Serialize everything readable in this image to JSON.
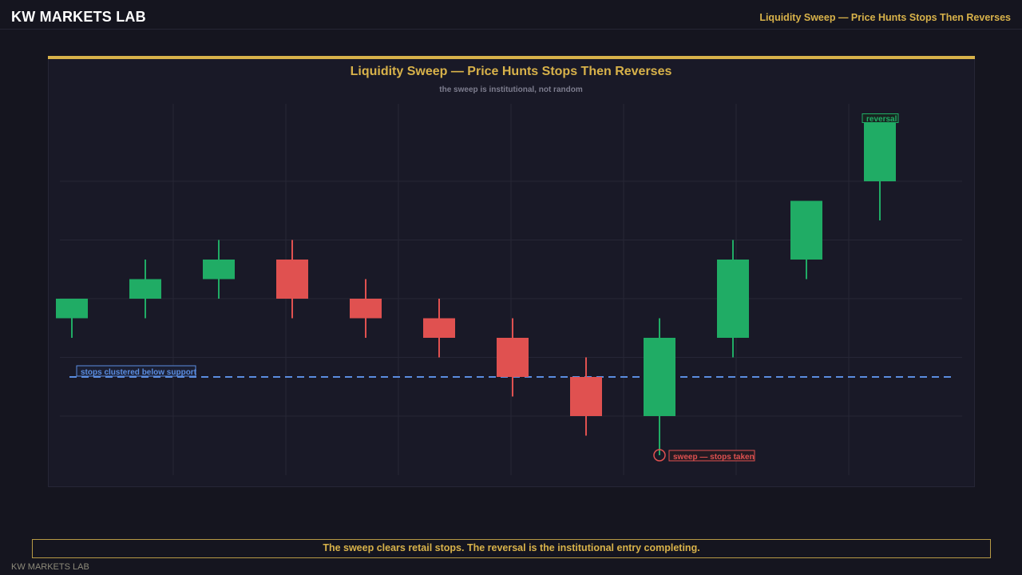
{
  "header": {
    "brand": "KW MARKETS LAB",
    "title": "Liquidity Sweep — Price Hunts Stops Then Reverses"
  },
  "colors": {
    "gold": "#d8b24a",
    "bull": "#20ac65",
    "bear": "#e05150",
    "support": "#5b8de0",
    "grid": "#262636"
  },
  "chart_data": {
    "type": "candlestick",
    "title": "Liquidity Sweep — Price Hunts Stops Then Reverses",
    "subtitle": "the sweep is institutional, not random",
    "xlabel": "",
    "ylabel": "",
    "ylim": [
      93,
      111
    ],
    "grid": true,
    "candles": [
      {
        "o": 100.0,
        "h": 101.0,
        "l": 99.0,
        "c": 101.0
      },
      {
        "o": 101.0,
        "h": 103.0,
        "l": 100.0,
        "c": 102.0
      },
      {
        "o": 102.0,
        "h": 104.0,
        "l": 101.0,
        "c": 103.0
      },
      {
        "o": 103.0,
        "h": 104.0,
        "l": 100.0,
        "c": 101.0
      },
      {
        "o": 101.0,
        "h": 102.0,
        "l": 99.0,
        "c": 100.0
      },
      {
        "o": 100.0,
        "h": 101.0,
        "l": 98.0,
        "c": 99.0
      },
      {
        "o": 99.0,
        "h": 100.0,
        "l": 96.0,
        "c": 97.0
      },
      {
        "o": 97.0,
        "h": 98.0,
        "l": 94.0,
        "c": 95.0
      },
      {
        "o": 95.0,
        "h": 100.0,
        "l": 93.0,
        "c": 99.0
      },
      {
        "o": 99.0,
        "h": 104.0,
        "l": 98.0,
        "c": 103.0
      },
      {
        "o": 103.0,
        "h": 106.0,
        "l": 102.0,
        "c": 106.0
      },
      {
        "o": 107.0,
        "h": 110.0,
        "l": 105.0,
        "c": 110.0
      }
    ],
    "support_level": 97.0,
    "annotations": {
      "support": "stops clustered below support",
      "sweep": "sweep — stops taken",
      "reversal": "reversal"
    },
    "sweep_candle": 8,
    "reversal_candle": 11
  },
  "caption": "The sweep clears retail stops. The reversal is the institutional entry completing.",
  "footer": "KW MARKETS LAB"
}
